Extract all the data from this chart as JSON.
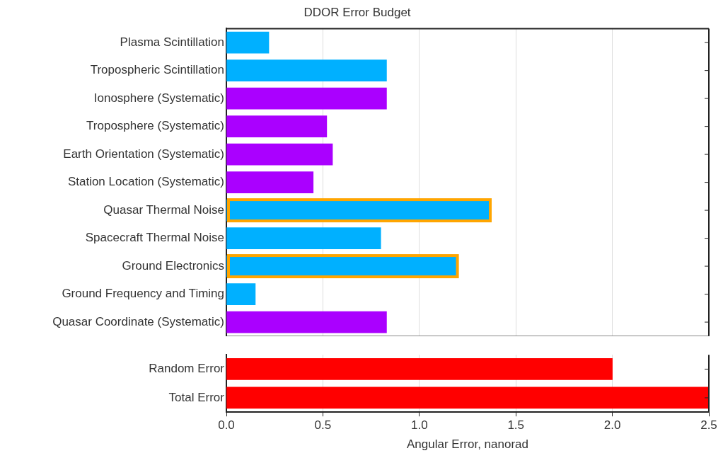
{
  "chart_data": [
    {
      "type": "bar",
      "orientation": "horizontal",
      "title": "DDOR Error Budget",
      "categories": [
        "Plasma Scintillation",
        "Tropospheric Scintillation",
        "Ionosphere (Systematic)",
        "Troposphere (Systematic)",
        "Earth Orientation (Systematic)",
        "Station Location (Systematic)",
        "Quasar Thermal Noise",
        "Spacecraft Thermal Noise",
        "Ground Electronics",
        "Ground Frequency and Timing",
        "Quasar Coordinate (Systematic)"
      ],
      "values": [
        0.22,
        0.83,
        0.83,
        0.52,
        0.55,
        0.45,
        1.36,
        0.8,
        1.19,
        0.15,
        0.83
      ],
      "colors": [
        "#00b0ff",
        "#00b0ff",
        "#aa00ff",
        "#aa00ff",
        "#aa00ff",
        "#aa00ff",
        "#00b0ff",
        "#00b0ff",
        "#00b0ff",
        "#00b0ff",
        "#aa00ff"
      ],
      "xlim": [
        0,
        2.5
      ],
      "xticks": [
        {
          "value": 0,
          "label": null
        },
        {
          "value": 0.5,
          "label": null
        },
        {
          "value": 1,
          "label": null
        },
        {
          "value": 1.5,
          "label": null
        },
        {
          "value": 2,
          "label": null
        },
        {
          "value": 2.5,
          "label": null
        }
      ],
      "tick_labels": "y",
      "grid": "x",
      "legend": false
    },
    {
      "type": "bar",
      "orientation": "horizontal",
      "xlabel": "Angular Error, nanorad",
      "categories": [
        "Random Error",
        "Total Error"
      ],
      "values": [
        2.0,
        2.5
      ],
      "colors": [
        "#ff0000",
        "#ff0000"
      ],
      "xlim": [
        0,
        2.5
      ],
      "xticks": [
        {
          "value": 0,
          "label": "0.0"
        },
        {
          "value": 0.5,
          "label": "0.5"
        },
        {
          "value": 1,
          "label": "1.0"
        },
        {
          "value": 1.5,
          "label": "1.5"
        },
        {
          "value": 2,
          "label": "2.0"
        },
        {
          "value": 2.5,
          "label": "2.5"
        }
      ],
      "grid": "x",
      "legend": false
    }
  ]
}
